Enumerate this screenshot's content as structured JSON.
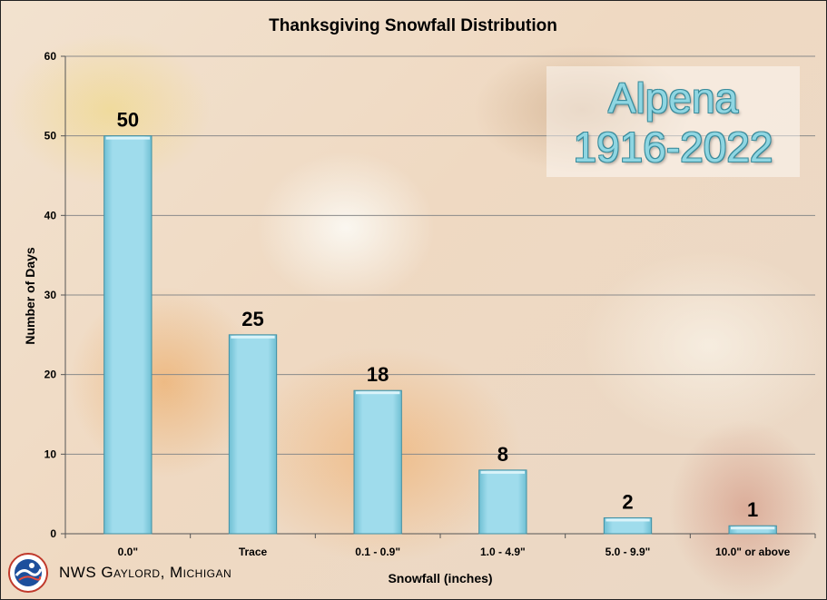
{
  "chart_data": {
    "type": "bar",
    "title": "Thanksgiving Snowfall Distribution",
    "xlabel": "Snowfall (inches)",
    "ylabel": "Number of Days",
    "categories": [
      "0.0\"",
      "Trace",
      "0.1 - 0.9\"",
      "1.0 - 4.9\"",
      "5.0 - 9.9\"",
      "10.0\" or above"
    ],
    "values": [
      50,
      25,
      18,
      8,
      2,
      1
    ],
    "ylim": [
      0,
      60
    ],
    "yticks": [
      0,
      10,
      20,
      30,
      40,
      50,
      60
    ],
    "grid": true,
    "bar_color": "#9fdcec"
  },
  "station": {
    "name": "Alpena",
    "period": "1916-2022"
  },
  "footer": {
    "office": "NWS Gaylord, Michigan",
    "logo_icon": "nws-logo-icon"
  }
}
